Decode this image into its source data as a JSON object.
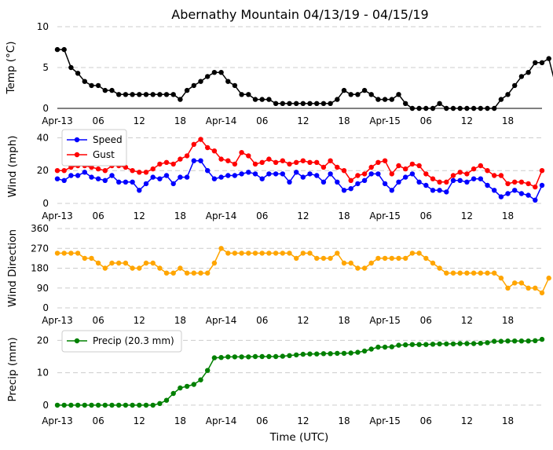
{
  "figure": {
    "title": "Abernathy Mountain 04/13/19 - 04/15/19",
    "xlabel": "Time (UTC)",
    "x_ticks": [
      "Apr-13",
      "06",
      "12",
      "18",
      "Apr-14",
      "06",
      "12",
      "18",
      "Apr-15",
      "06",
      "12",
      "18"
    ],
    "x_tick_hours": [
      0,
      6,
      12,
      18,
      24,
      30,
      36,
      42,
      48,
      54,
      60,
      66
    ],
    "xlim_hours": [
      0,
      71
    ]
  },
  "chart_data": [
    {
      "type": "line",
      "ylabel": "Temp (°C)",
      "ylim": [
        0,
        10
      ],
      "yticks": [
        0,
        5,
        10
      ],
      "grid": "horizontal dashed",
      "series": [
        {
          "color": "#000000",
          "values": [
            7.2,
            7.2,
            5.0,
            4.3,
            3.3,
            2.8,
            2.8,
            2.2,
            2.2,
            1.7,
            1.7,
            1.7,
            1.7,
            1.7,
            1.7,
            1.7,
            1.7,
            1.7,
            1.1,
            2.2,
            2.8,
            3.3,
            3.9,
            4.4,
            4.4,
            3.3,
            2.8,
            1.7,
            1.7,
            1.1,
            1.1,
            1.1,
            0.6,
            0.6,
            0.6,
            0.6,
            0.6,
            0.6,
            0.6,
            0.6,
            0.6,
            1.1,
            2.2,
            1.7,
            1.7,
            2.2,
            1.7,
            1.1,
            1.1,
            1.1,
            1.7,
            0.6,
            0.0,
            0.0,
            0.0,
            0.0,
            0.6,
            0.0,
            0.0,
            0.0,
            0.0,
            0.0,
            0.0,
            0.0,
            0.0,
            1.1,
            1.7,
            2.8,
            3.9,
            4.4,
            5.6,
            5.6,
            6.1,
            2.8
          ]
        }
      ]
    },
    {
      "type": "line",
      "ylabel": "Wind (mph)",
      "ylim": [
        0,
        45
      ],
      "yticks": [
        0,
        20,
        40
      ],
      "grid": "horizontal dashed",
      "legend": "top-left",
      "series": [
        {
          "name": "Speed",
          "color": "#0000ff",
          "values": [
            15,
            14,
            17,
            17,
            19,
            16,
            15,
            14,
            17,
            13,
            13,
            13,
            8,
            12,
            16,
            15,
            17,
            12,
            16,
            16,
            26,
            26,
            20,
            15,
            16,
            17,
            17,
            18,
            19,
            18,
            15,
            18,
            18,
            18,
            13,
            19,
            16,
            18,
            17,
            13,
            18,
            13,
            8,
            9,
            12,
            14,
            18,
            18,
            12,
            8,
            13,
            16,
            18,
            13,
            11,
            8,
            8,
            7,
            14,
            14,
            13,
            15,
            15,
            11,
            8,
            4,
            6,
            8,
            6,
            5,
            2,
            11
          ]
        },
        {
          "name": "Gust",
          "color": "#ff0000",
          "values": [
            20,
            20,
            22,
            23,
            23,
            22,
            21,
            20,
            23,
            23,
            22,
            20,
            19,
            19,
            21,
            24,
            25,
            24,
            27,
            29,
            36,
            39,
            34,
            32,
            27,
            26,
            24,
            31,
            29,
            24,
            25,
            27,
            25,
            26,
            24,
            25,
            26,
            25,
            25,
            22,
            26,
            22,
            20,
            14,
            17,
            18,
            22,
            25,
            26,
            18,
            23,
            21,
            24,
            23,
            18,
            15,
            13,
            13,
            17,
            19,
            18,
            21,
            23,
            20,
            17,
            17,
            12,
            13,
            13,
            12,
            10,
            20
          ]
        }
      ]
    },
    {
      "type": "line",
      "ylabel": "Wind Direction",
      "ylim": [
        0,
        360
      ],
      "yticks": [
        0,
        90,
        180,
        270,
        360
      ],
      "grid": "horizontal dashed",
      "series": [
        {
          "color": "#ffa500",
          "values": [
            248,
            248,
            248,
            248,
            225,
            225,
            203,
            180,
            203,
            203,
            203,
            180,
            180,
            203,
            203,
            180,
            158,
            158,
            180,
            158,
            158,
            158,
            158,
            203,
            270,
            248,
            248,
            248,
            248,
            248,
            248,
            248,
            248,
            248,
            248,
            225,
            248,
            248,
            225,
            225,
            225,
            248,
            203,
            203,
            180,
            180,
            203,
            225,
            225,
            225,
            225,
            225,
            248,
            248,
            225,
            203,
            180,
            158,
            158,
            158,
            158,
            158,
            158,
            158,
            158,
            135,
            90,
            113,
            113,
            90,
            90,
            68,
            135
          ]
        }
      ]
    },
    {
      "type": "line",
      "ylabel": "Precip (mm)",
      "ylim": [
        -1,
        23
      ],
      "yticks": [
        0,
        10,
        20
      ],
      "grid": "horizontal dashed",
      "legend": "top-left",
      "series": [
        {
          "name": "Precip (20.3 mm)",
          "color": "#008000",
          "values": [
            0,
            0,
            0,
            0,
            0,
            0,
            0,
            0,
            0,
            0,
            0,
            0,
            0,
            0,
            0,
            0.5,
            1.5,
            3.6,
            5.3,
            5.8,
            6.4,
            7.8,
            10.7,
            14.6,
            14.7,
            14.9,
            14.9,
            14.9,
            14.9,
            15.0,
            15.0,
            15.0,
            15.0,
            15.1,
            15.3,
            15.5,
            15.7,
            15.8,
            15.8,
            15.9,
            15.9,
            16.0,
            16.0,
            16.1,
            16.3,
            16.7,
            17.3,
            17.9,
            17.9,
            18.0,
            18.5,
            18.6,
            18.7,
            18.7,
            18.7,
            18.8,
            18.9,
            18.9,
            18.9,
            19.0,
            19.0,
            19.0,
            19.1,
            19.3,
            19.7,
            19.7,
            19.8,
            19.8,
            19.8,
            19.8,
            19.9,
            20.3
          ]
        }
      ]
    }
  ]
}
